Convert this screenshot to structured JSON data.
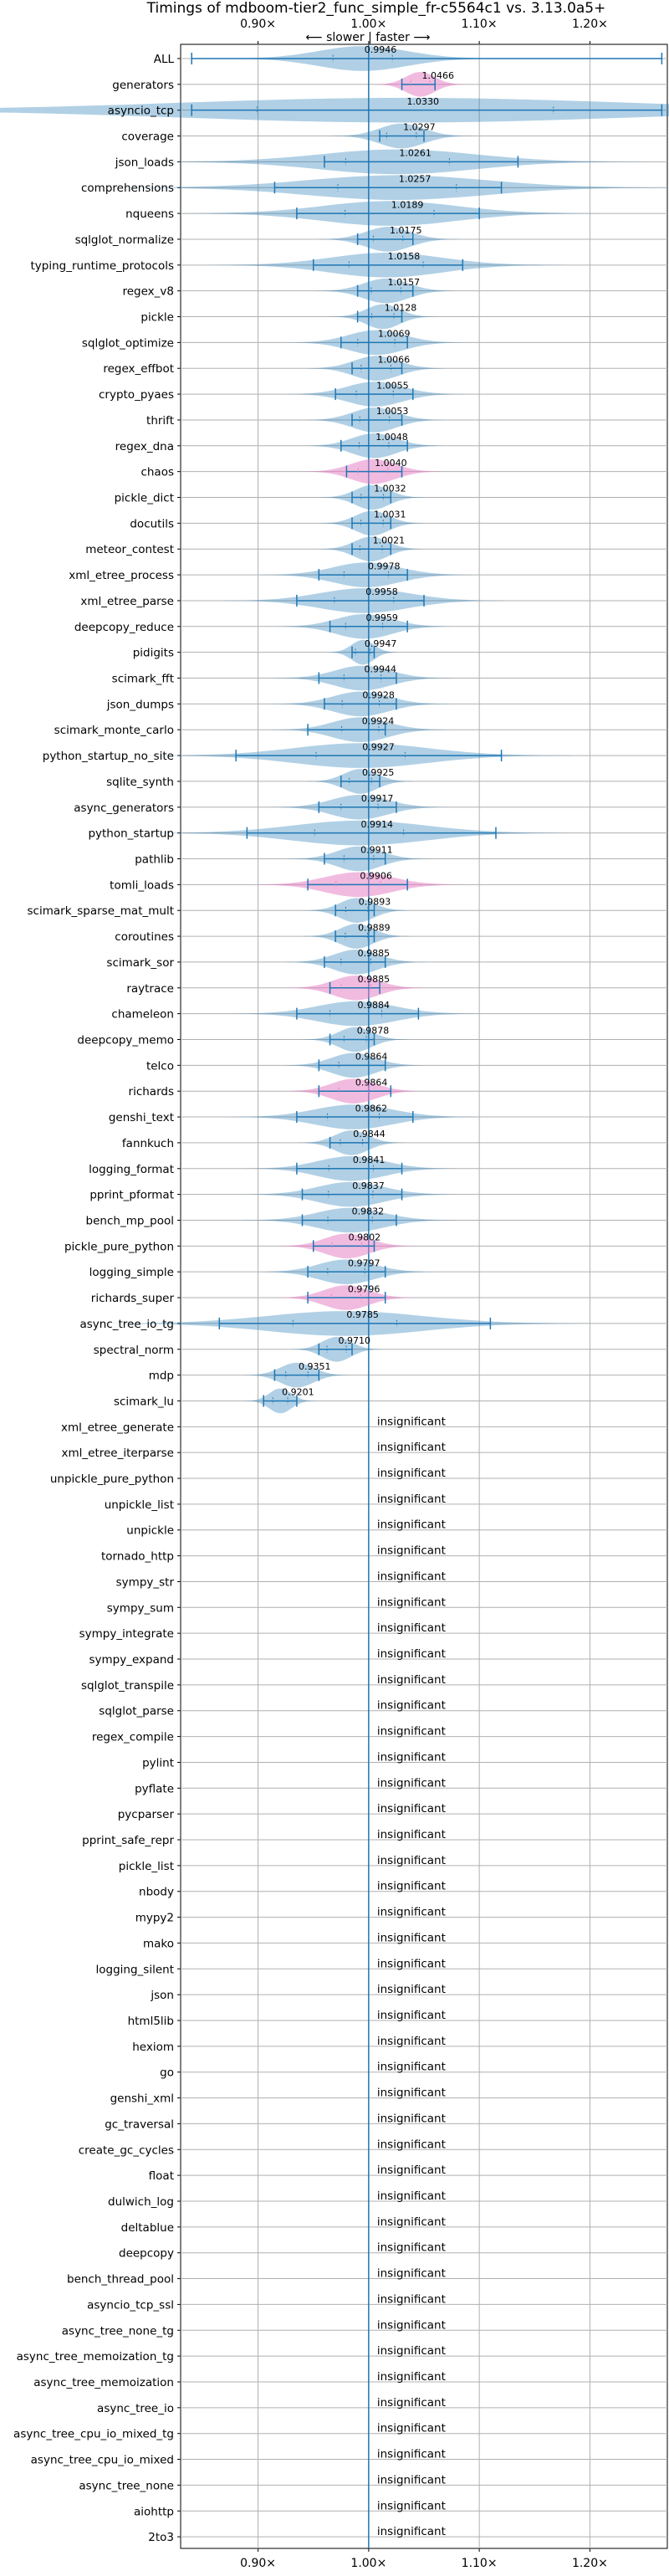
{
  "chart_data": {
    "type": "violin",
    "title": "Timings of mdboom-tier2_func_simple_fr-c5564c1 vs. 3.13.0a5+",
    "direction_note": "⟵ slower | faster ⟶",
    "xlim": [
      0.83,
      1.27
    ],
    "x_ticks": [
      {
        "value": 0.9,
        "label": "0.90×"
      },
      {
        "value": 1.0,
        "label": "1.00×"
      },
      {
        "value": 1.1,
        "label": "1.10×"
      },
      {
        "value": 1.2,
        "label": "1.20×"
      }
    ],
    "reference_line": 1.0,
    "grid": true,
    "insignificant_label": "insignificant",
    "colors": {
      "normal": "#1f77b4",
      "highlight": "#e377c2",
      "insignificant": "none"
    },
    "benchmarks": [
      {
        "name": "ALL",
        "value": 0.9946,
        "label": "0.9946",
        "min": 0.84,
        "max": 1.265,
        "spread": 0.04
      },
      {
        "name": "generators",
        "value": 1.0466,
        "label": "1.0466",
        "min": 1.03,
        "max": 1.06,
        "spread": 0.013,
        "highlight": true
      },
      {
        "name": "asyncio_tcp",
        "value": 1.033,
        "label": "1.0330",
        "min": 0.84,
        "max": 1.265,
        "spread": 0.2
      },
      {
        "name": "coverage",
        "value": 1.0297,
        "label": "1.0297",
        "min": 1.01,
        "max": 1.05,
        "spread": 0.02
      },
      {
        "name": "json_loads",
        "value": 1.0261,
        "label": "1.0261",
        "min": 0.96,
        "max": 1.135,
        "spread": 0.07
      },
      {
        "name": "comprehensions",
        "value": 1.0257,
        "label": "1.0257",
        "min": 0.915,
        "max": 1.12,
        "spread": 0.08
      },
      {
        "name": "nqueens",
        "value": 1.0189,
        "label": "1.0189",
        "min": 0.935,
        "max": 1.1,
        "spread": 0.06
      },
      {
        "name": "sqlglot_normalize",
        "value": 1.0175,
        "label": "1.0175",
        "min": 0.99,
        "max": 1.04,
        "spread": 0.02
      },
      {
        "name": "typing_runtime_protocols",
        "value": 1.0158,
        "label": "1.0158",
        "min": 0.95,
        "max": 1.085,
        "spread": 0.05
      },
      {
        "name": "regex_v8",
        "value": 1.0157,
        "label": "1.0157",
        "min": 0.99,
        "max": 1.04,
        "spread": 0.02
      },
      {
        "name": "pickle",
        "value": 1.0128,
        "label": "1.0128",
        "min": 0.99,
        "max": 1.03,
        "spread": 0.015
      },
      {
        "name": "sqlglot_optimize",
        "value": 1.0069,
        "label": "1.0069",
        "min": 0.975,
        "max": 1.035,
        "spread": 0.025
      },
      {
        "name": "regex_effbot",
        "value": 1.0066,
        "label": "1.0066",
        "min": 0.985,
        "max": 1.03,
        "spread": 0.02
      },
      {
        "name": "crypto_pyaes",
        "value": 1.0055,
        "label": "1.0055",
        "min": 0.97,
        "max": 1.04,
        "spread": 0.025
      },
      {
        "name": "thrift",
        "value": 1.0053,
        "label": "1.0053",
        "min": 0.985,
        "max": 1.03,
        "spread": 0.02
      },
      {
        "name": "regex_dna",
        "value": 1.0048,
        "label": "1.0048",
        "min": 0.975,
        "max": 1.035,
        "spread": 0.02
      },
      {
        "name": "chaos",
        "value": 1.004,
        "label": "1.0040",
        "min": 0.98,
        "max": 1.03,
        "spread": 0.02,
        "highlight": true
      },
      {
        "name": "pickle_dict",
        "value": 1.0032,
        "label": "1.0032",
        "min": 0.985,
        "max": 1.02,
        "spread": 0.015
      },
      {
        "name": "docutils",
        "value": 1.0031,
        "label": "1.0031",
        "min": 0.985,
        "max": 1.02,
        "spread": 0.015
      },
      {
        "name": "meteor_contest",
        "value": 1.0021,
        "label": "1.0021",
        "min": 0.985,
        "max": 1.02,
        "spread": 0.015
      },
      {
        "name": "xml_etree_process",
        "value": 0.9978,
        "label": "0.9978",
        "min": 0.955,
        "max": 1.035,
        "spread": 0.03
      },
      {
        "name": "xml_etree_parse",
        "value": 0.9958,
        "label": "0.9958",
        "min": 0.935,
        "max": 1.05,
        "spread": 0.04
      },
      {
        "name": "deepcopy_reduce",
        "value": 0.9959,
        "label": "0.9959",
        "min": 0.965,
        "max": 1.035,
        "spread": 0.025
      },
      {
        "name": "pidigits",
        "value": 0.9947,
        "label": "0.9947",
        "min": 0.985,
        "max": 1.005,
        "spread": 0.01
      },
      {
        "name": "scimark_fft",
        "value": 0.9944,
        "label": "0.9944",
        "min": 0.955,
        "max": 1.025,
        "spread": 0.025
      },
      {
        "name": "json_dumps",
        "value": 0.9928,
        "label": "0.9928",
        "min": 0.96,
        "max": 1.025,
        "spread": 0.025
      },
      {
        "name": "scimark_monte_carlo",
        "value": 0.9924,
        "label": "0.9924",
        "min": 0.945,
        "max": 1.015,
        "spread": 0.025
      },
      {
        "name": "python_startup_no_site",
        "value": 0.9927,
        "label": "0.9927",
        "min": 0.88,
        "max": 1.12,
        "spread": 0.06
      },
      {
        "name": "sqlite_synth",
        "value": 0.9925,
        "label": "0.9925",
        "min": 0.975,
        "max": 1.01,
        "spread": 0.015
      },
      {
        "name": "async_generators",
        "value": 0.9917,
        "label": "0.9917",
        "min": 0.955,
        "max": 1.025,
        "spread": 0.025
      },
      {
        "name": "python_startup",
        "value": 0.9914,
        "label": "0.9914",
        "min": 0.89,
        "max": 1.115,
        "spread": 0.06
      },
      {
        "name": "pathlib",
        "value": 0.9911,
        "label": "0.9911",
        "min": 0.96,
        "max": 1.015,
        "spread": 0.02
      },
      {
        "name": "tomli_loads",
        "value": 0.9906,
        "label": "0.9906",
        "min": 0.945,
        "max": 1.035,
        "spread": 0.03,
        "highlight": true
      },
      {
        "name": "scimark_sparse_mat_mult",
        "value": 0.9893,
        "label": "0.9893",
        "min": 0.97,
        "max": 1.005,
        "spread": 0.015
      },
      {
        "name": "coroutines",
        "value": 0.9889,
        "label": "0.9889",
        "min": 0.97,
        "max": 1.005,
        "spread": 0.015
      },
      {
        "name": "scimark_sor",
        "value": 0.9885,
        "label": "0.9885",
        "min": 0.96,
        "max": 1.015,
        "spread": 0.02
      },
      {
        "name": "raytrace",
        "value": 0.9885,
        "label": "0.9885",
        "min": 0.965,
        "max": 1.01,
        "spread": 0.02,
        "highlight": true
      },
      {
        "name": "chameleon",
        "value": 0.9884,
        "label": "0.9884",
        "min": 0.935,
        "max": 1.045,
        "spread": 0.035
      },
      {
        "name": "deepcopy_memo",
        "value": 0.9878,
        "label": "0.9878",
        "min": 0.965,
        "max": 1.005,
        "spread": 0.015
      },
      {
        "name": "telco",
        "value": 0.9864,
        "label": "0.9864",
        "min": 0.955,
        "max": 1.015,
        "spread": 0.02
      },
      {
        "name": "richards",
        "value": 0.9864,
        "label": "0.9864",
        "min": 0.955,
        "max": 1.02,
        "spread": 0.02,
        "highlight": true
      },
      {
        "name": "genshi_text",
        "value": 0.9862,
        "label": "0.9862",
        "min": 0.935,
        "max": 1.04,
        "spread": 0.035
      },
      {
        "name": "fannkuch",
        "value": 0.9844,
        "label": "0.9844",
        "min": 0.965,
        "max": 1.0,
        "spread": 0.015
      },
      {
        "name": "logging_format",
        "value": 0.9841,
        "label": "0.9841",
        "min": 0.935,
        "max": 1.03,
        "spread": 0.03
      },
      {
        "name": "pprint_pformat",
        "value": 0.9837,
        "label": "0.9837",
        "min": 0.94,
        "max": 1.03,
        "spread": 0.03
      },
      {
        "name": "bench_mp_pool",
        "value": 0.9832,
        "label": "0.9832",
        "min": 0.94,
        "max": 1.025,
        "spread": 0.03
      },
      {
        "name": "pickle_pure_python",
        "value": 0.9802,
        "label": "0.9802",
        "min": 0.95,
        "max": 1.005,
        "spread": 0.02,
        "highlight": true
      },
      {
        "name": "logging_simple",
        "value": 0.9797,
        "label": "0.9797",
        "min": 0.945,
        "max": 1.015,
        "spread": 0.025
      },
      {
        "name": "richards_super",
        "value": 0.9796,
        "label": "0.9796",
        "min": 0.945,
        "max": 1.015,
        "spread": 0.02,
        "highlight": true
      },
      {
        "name": "async_tree_io_tg",
        "value": 0.9785,
        "label": "0.9785",
        "min": 0.865,
        "max": 1.11,
        "spread": 0.07
      },
      {
        "name": "spectral_norm",
        "value": 0.971,
        "label": "0.9710",
        "min": 0.955,
        "max": 0.985,
        "spread": 0.013
      },
      {
        "name": "mdp",
        "value": 0.9351,
        "label": "0.9351",
        "min": 0.915,
        "max": 0.955,
        "spread": 0.015
      },
      {
        "name": "scimark_lu",
        "value": 0.9201,
        "label": "0.9201",
        "min": 0.905,
        "max": 0.935,
        "spread": 0.01
      },
      {
        "name": "xml_etree_generate",
        "insignificant": true
      },
      {
        "name": "xml_etree_iterparse",
        "insignificant": true
      },
      {
        "name": "unpickle_pure_python",
        "insignificant": true
      },
      {
        "name": "unpickle_list",
        "insignificant": true
      },
      {
        "name": "unpickle",
        "insignificant": true
      },
      {
        "name": "tornado_http",
        "insignificant": true
      },
      {
        "name": "sympy_str",
        "insignificant": true
      },
      {
        "name": "sympy_sum",
        "insignificant": true
      },
      {
        "name": "sympy_integrate",
        "insignificant": true
      },
      {
        "name": "sympy_expand",
        "insignificant": true
      },
      {
        "name": "sqlglot_transpile",
        "insignificant": true
      },
      {
        "name": "sqlglot_parse",
        "insignificant": true
      },
      {
        "name": "regex_compile",
        "insignificant": true
      },
      {
        "name": "pylint",
        "insignificant": true
      },
      {
        "name": "pyflate",
        "insignificant": true
      },
      {
        "name": "pycparser",
        "insignificant": true
      },
      {
        "name": "pprint_safe_repr",
        "insignificant": true
      },
      {
        "name": "pickle_list",
        "insignificant": true
      },
      {
        "name": "nbody",
        "insignificant": true
      },
      {
        "name": "mypy2",
        "insignificant": true
      },
      {
        "name": "mako",
        "insignificant": true
      },
      {
        "name": "logging_silent",
        "insignificant": true
      },
      {
        "name": "json",
        "insignificant": true
      },
      {
        "name": "html5lib",
        "insignificant": true
      },
      {
        "name": "hexiom",
        "insignificant": true
      },
      {
        "name": "go",
        "insignificant": true
      },
      {
        "name": "genshi_xml",
        "insignificant": true
      },
      {
        "name": "gc_traversal",
        "insignificant": true
      },
      {
        "name": "create_gc_cycles",
        "insignificant": true
      },
      {
        "name": "float",
        "insignificant": true
      },
      {
        "name": "dulwich_log",
        "insignificant": true
      },
      {
        "name": "deltablue",
        "insignificant": true
      },
      {
        "name": "deepcopy",
        "insignificant": true
      },
      {
        "name": "bench_thread_pool",
        "insignificant": true
      },
      {
        "name": "asyncio_tcp_ssl",
        "insignificant": true
      },
      {
        "name": "async_tree_none_tg",
        "insignificant": true
      },
      {
        "name": "async_tree_memoization_tg",
        "insignificant": true
      },
      {
        "name": "async_tree_memoization",
        "insignificant": true
      },
      {
        "name": "async_tree_io",
        "insignificant": true
      },
      {
        "name": "async_tree_cpu_io_mixed_tg",
        "insignificant": true
      },
      {
        "name": "async_tree_cpu_io_mixed",
        "insignificant": true
      },
      {
        "name": "async_tree_none",
        "insignificant": true
      },
      {
        "name": "aiohttp",
        "insignificant": true
      },
      {
        "name": "2to3",
        "insignificant": true
      }
    ]
  }
}
